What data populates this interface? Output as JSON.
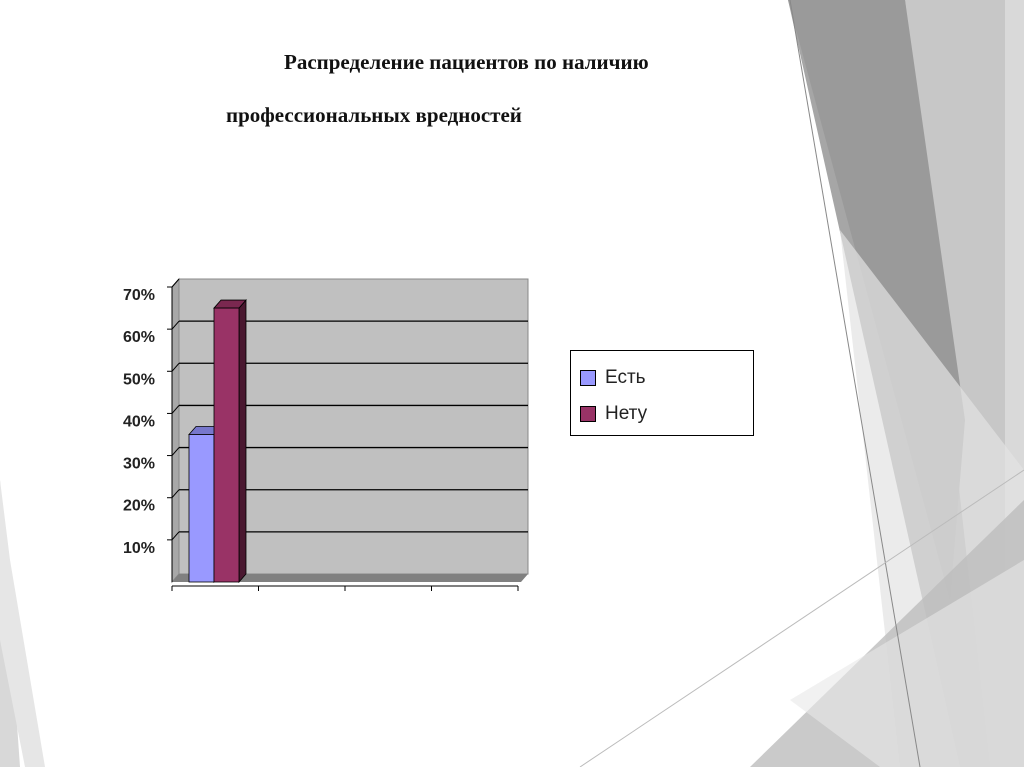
{
  "slide": {
    "title_line1": "Распределение пациентов по наличию",
    "title_line2": "профессиональных вредностей"
  },
  "chart_data": {
    "type": "bar",
    "style": "3d-clustered-column",
    "categories": [
      ""
    ],
    "series": [
      {
        "name": "Есть",
        "values": [
          35
        ],
        "color": "#9999ff"
      },
      {
        "name": "Нету",
        "values": [
          65
        ],
        "color": "#993366"
      }
    ],
    "ylim": [
      0,
      70
    ],
    "yticks": [
      "10%",
      "20%",
      "30%",
      "40%",
      "50%",
      "60%",
      "70%"
    ],
    "y_unit": "%",
    "grid": true,
    "legend": "right",
    "plot_background": "#c0c0c0"
  }
}
